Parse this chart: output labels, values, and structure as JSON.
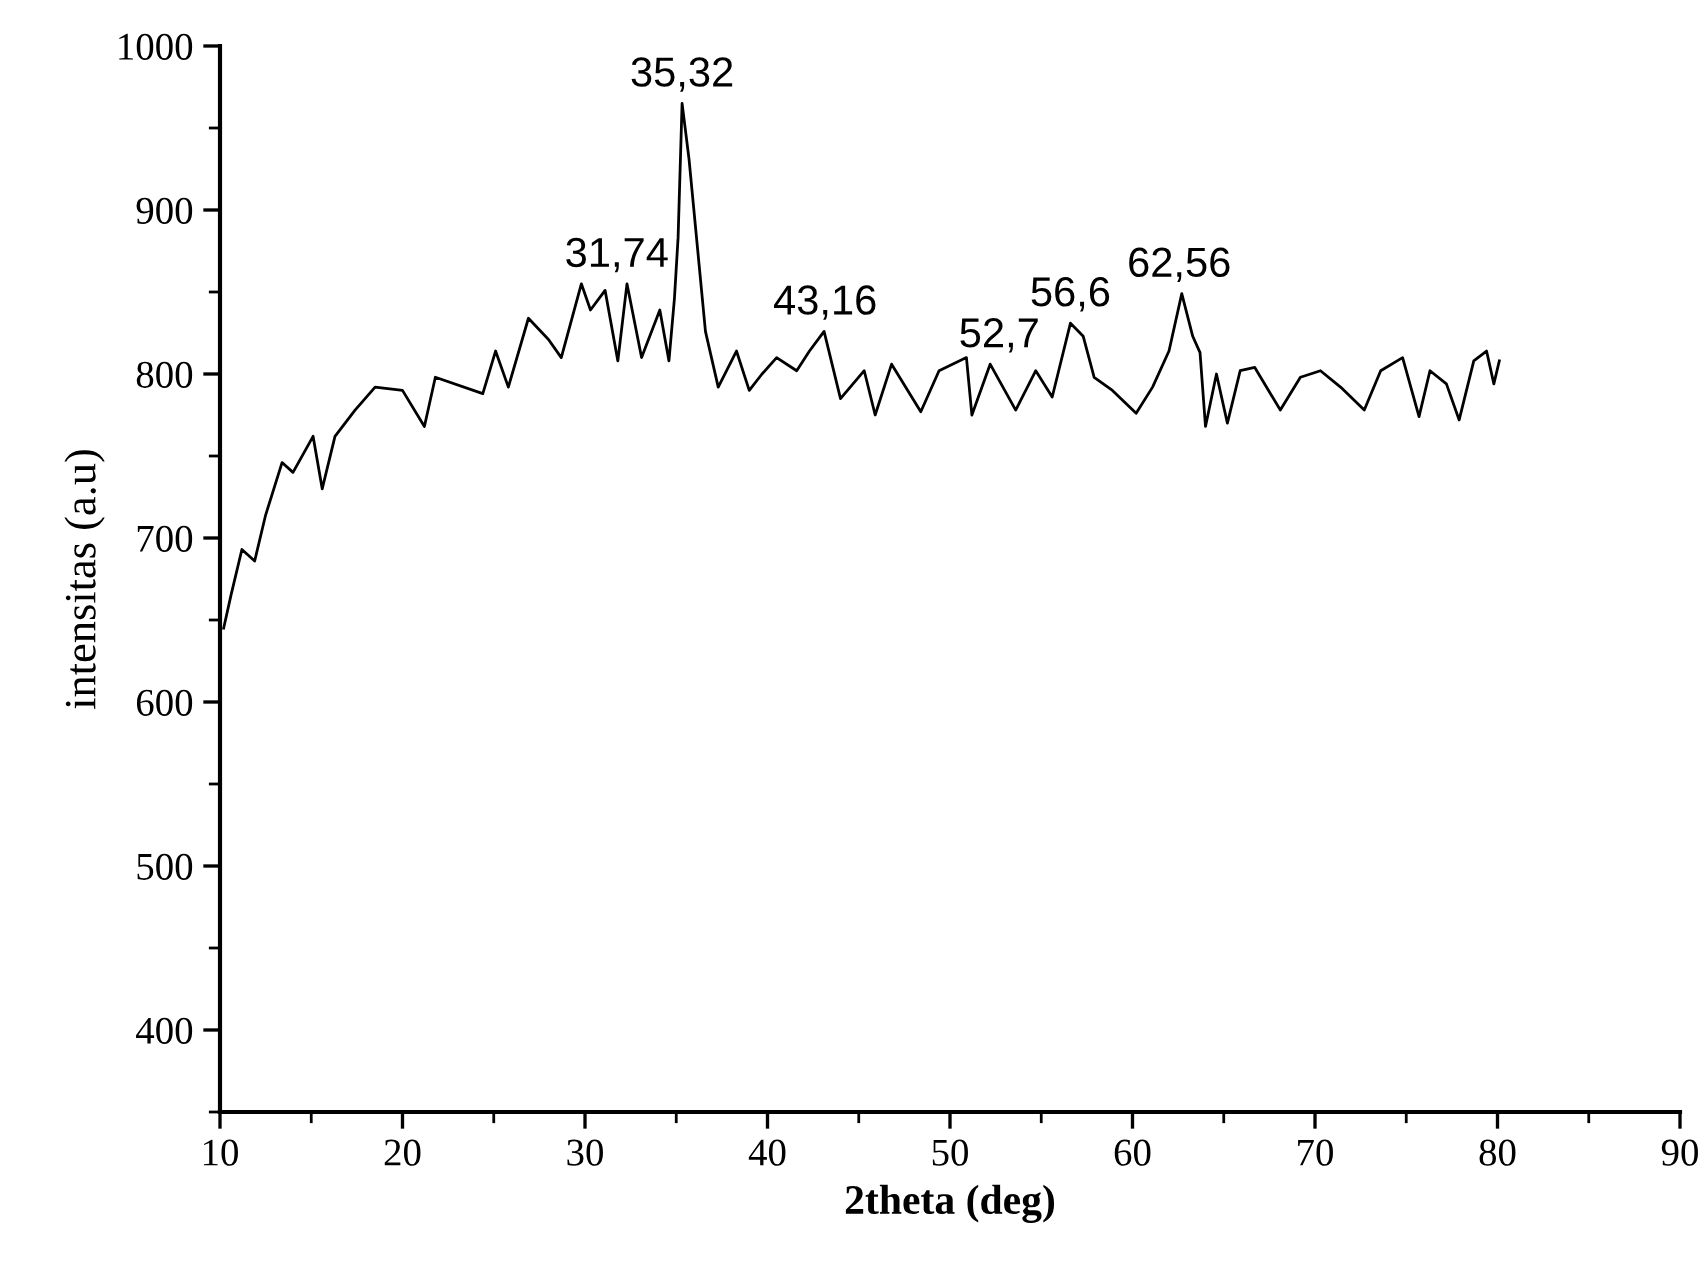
{
  "chart_data": {
    "type": "line",
    "xlabel": "2theta (deg)",
    "ylabel": "intensitas (a.u)",
    "xlim": [
      10,
      90
    ],
    "ylim": [
      350,
      1000
    ],
    "xticks": [
      10,
      {
        "value": 15,
        "label": null
      },
      20,
      {
        "value": 25,
        "label": null
      },
      30,
      {
        "value": 35,
        "label": null
      },
      40,
      {
        "value": 45,
        "label": null
      },
      50,
      {
        "value": 55,
        "label": null
      },
      60,
      {
        "value": 65,
        "label": null
      },
      70,
      {
        "value": 75,
        "label": null
      },
      80,
      {
        "value": 85,
        "label": null
      },
      90
    ],
    "yticks": [
      {
        "value": 350,
        "label": null
      },
      400,
      {
        "value": 450,
        "label": null
      },
      500,
      {
        "value": 550,
        "label": null
      },
      600,
      {
        "value": 650,
        "label": null
      },
      700,
      {
        "value": 750,
        "label": null
      },
      800,
      {
        "value": 850,
        "label": null
      },
      900,
      {
        "value": 950,
        "label": null
      },
      1000
    ],
    "grid": false,
    "legend": false,
    "marker": "none",
    "line_style": "solid",
    "series": [
      {
        "color": "#000000",
        "x": [
          10.2,
          10.6,
          11.2,
          11.9,
          12.5,
          13.4,
          14.0,
          15.1,
          15.6,
          16.3,
          17.4,
          18.5,
          20.0,
          21.2,
          21.8,
          24.4,
          25.1,
          25.8,
          26.9,
          28.0,
          28.7,
          29.8,
          30.3,
          31.1,
          31.8,
          32.3,
          33.1,
          34.1,
          34.6,
          34.9,
          35.1,
          35.32,
          35.7,
          36.6,
          37.3,
          38.3,
          39.0,
          39.7,
          40.5,
          41.6,
          42.3,
          43.1,
          44.0,
          45.3,
          45.9,
          46.8,
          48.4,
          49.4,
          50.9,
          51.2,
          52.2,
          53.6,
          54.7,
          55.6,
          56.6,
          57.3,
          57.9,
          58.9,
          60.2,
          61.1,
          62.0,
          62.7,
          63.3,
          63.7,
          64.0,
          64.6,
          65.2,
          65.9,
          66.7,
          68.1,
          69.2,
          70.3,
          71.4,
          72.7,
          73.6,
          74.8,
          75.7,
          76.3,
          77.2,
          77.9,
          78.7,
          79.4,
          79.8,
          80.1
        ],
        "values": [
          645,
          665,
          693,
          686,
          714,
          746,
          740,
          762,
          730,
          762,
          778,
          792,
          790,
          768,
          798,
          788,
          814,
          792,
          834,
          821,
          810,
          855,
          839,
          851,
          808,
          855,
          810,
          839,
          808,
          846,
          883,
          965,
          931,
          826,
          792,
          814,
          790,
          800,
          810,
          802,
          814,
          826,
          785,
          802,
          775,
          806,
          777,
          802,
          810,
          775,
          806,
          778,
          802,
          786,
          831,
          823,
          798,
          790,
          776,
          792,
          814,
          849,
          823,
          813,
          768,
          800,
          770,
          802,
          804,
          778,
          798,
          802,
          792,
          778,
          802,
          810,
          774,
          802,
          794,
          772,
          808,
          814,
          794,
          808
        ]
      }
    ],
    "annotations": [
      {
        "text": "31,74",
        "x": 31.74,
        "y": 855
      },
      {
        "text": "35,32",
        "x": 35.32,
        "y": 965
      },
      {
        "text": "43,16",
        "x": 43.16,
        "y": 826
      },
      {
        "text": "52,7",
        "x": 52.7,
        "y": 806
      },
      {
        "text": "56,6",
        "x": 56.6,
        "y": 831
      },
      {
        "text": "62,56",
        "x": 62.56,
        "y": 849
      }
    ]
  }
}
